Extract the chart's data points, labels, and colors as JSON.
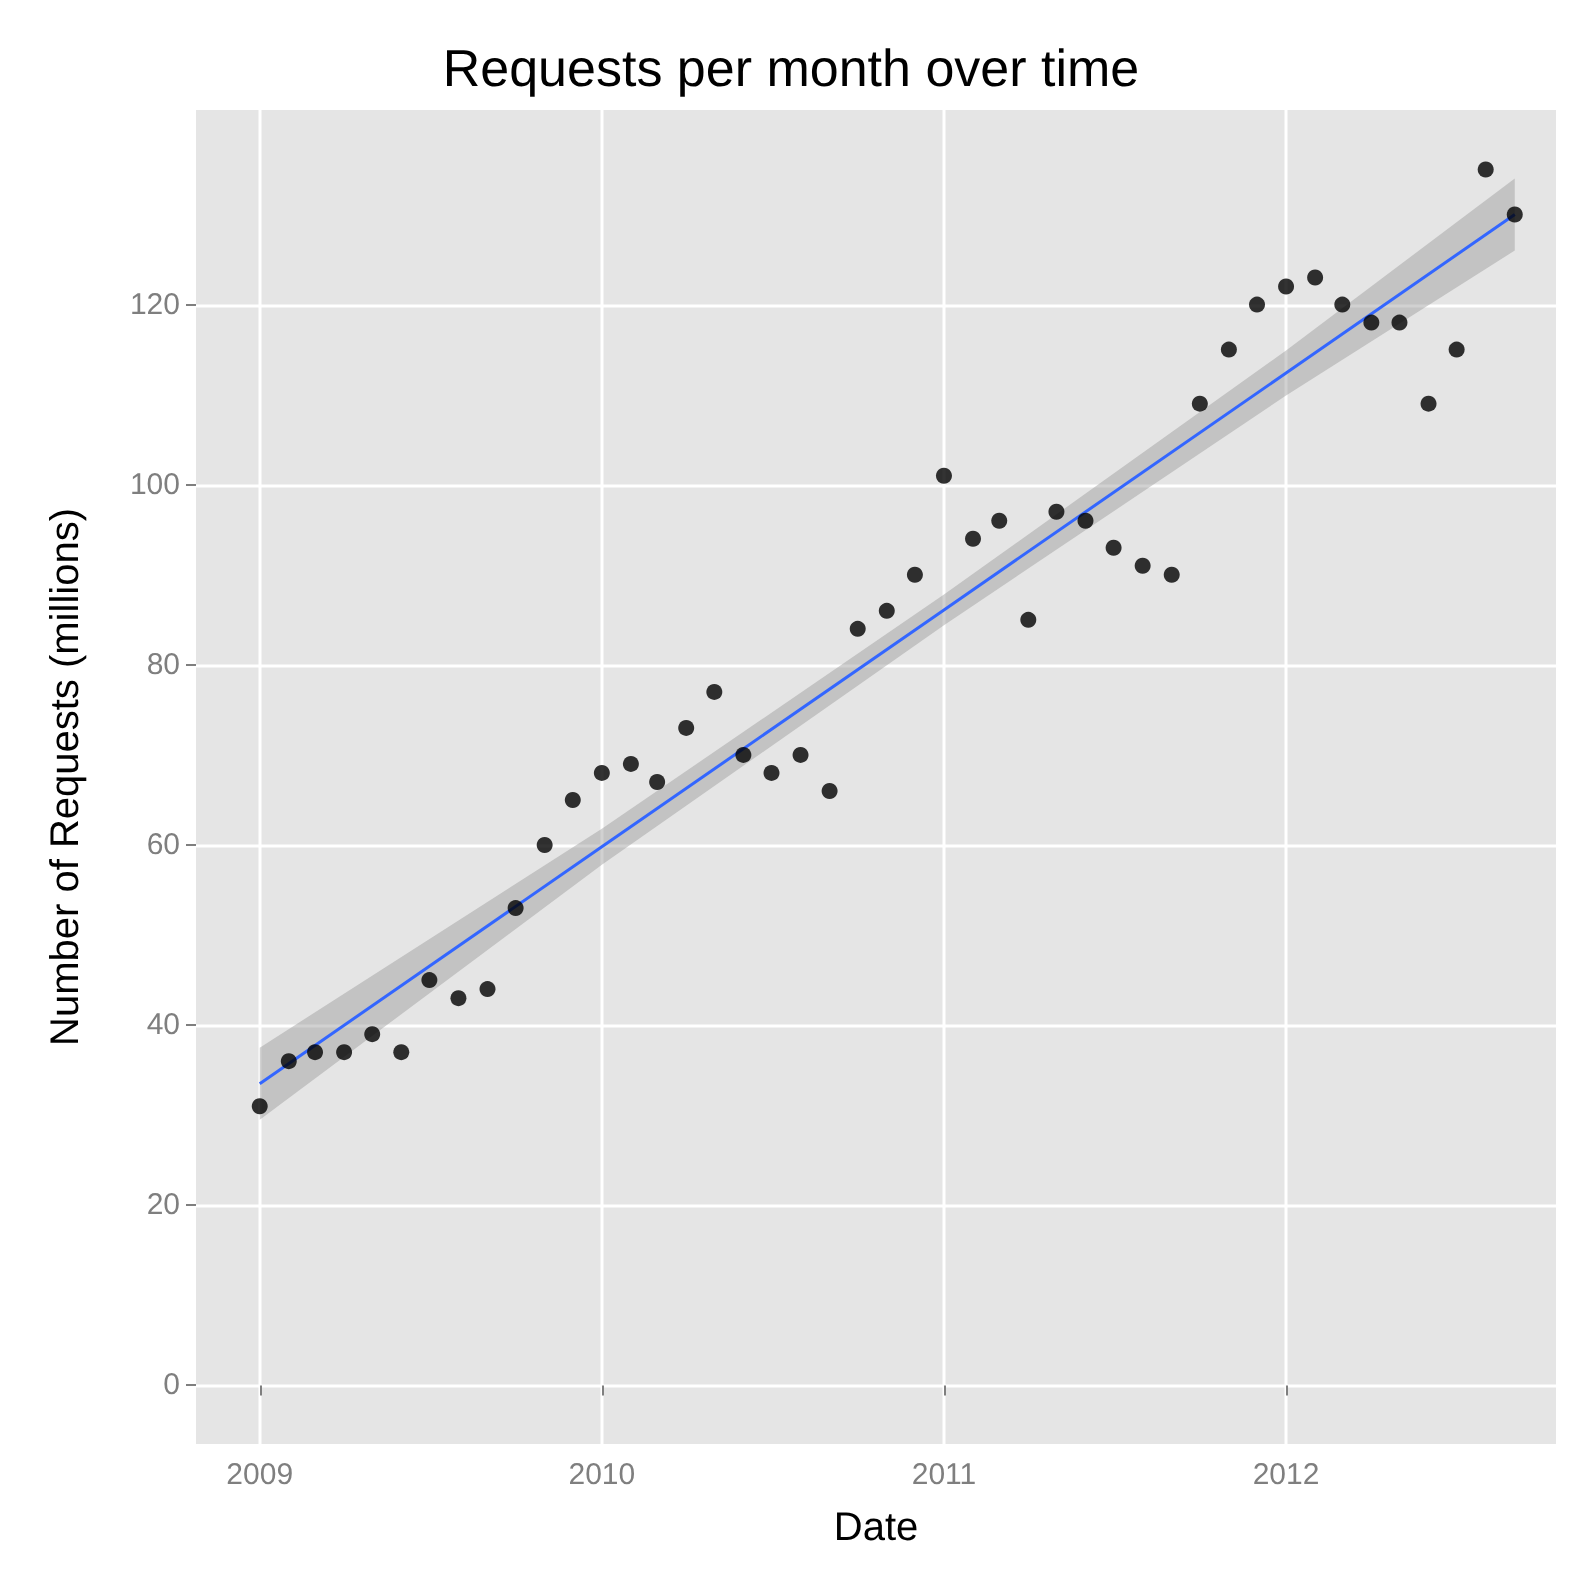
{
  "chart_data": {
    "type": "scatter",
    "title": "Requests per month over time",
    "xlabel": "Date",
    "ylabel": "Number of Requests (millions)",
    "xlim": [
      "2008-10-25",
      "2012-10-15"
    ],
    "xticks": [
      "2009",
      "2010",
      "2011",
      "2012"
    ],
    "ylim": [
      -6.5,
      141.6
    ],
    "yticks": [
      0,
      20,
      40,
      60,
      80,
      100,
      120
    ],
    "grid": true,
    "series": [
      {
        "marker": "circle",
        "color": "#000000",
        "x": [
          "2009-01",
          "2009-02",
          "2009-03",
          "2009-04",
          "2009-05",
          "2009-06",
          "2009-07",
          "2009-08",
          "2009-09",
          "2009-10",
          "2009-11",
          "2009-12",
          "2010-01",
          "2010-02",
          "2010-03",
          "2010-04",
          "2010-05",
          "2010-06",
          "2010-07",
          "2010-08",
          "2010-09",
          "2010-10",
          "2010-11",
          "2010-12",
          "2011-01",
          "2011-02",
          "2011-03",
          "2011-04",
          "2011-05",
          "2011-06",
          "2011-07",
          "2011-08",
          "2011-09",
          "2011-10",
          "2011-11",
          "2011-12",
          "2012-01",
          "2012-02",
          "2012-03",
          "2012-04",
          "2012-05",
          "2012-06",
          "2012-07",
          "2012-08",
          "2012-09"
        ],
        "values": [
          31,
          36,
          37,
          37,
          39,
          37,
          45,
          43,
          44,
          53,
          60,
          65,
          68,
          69,
          67,
          73,
          77,
          70,
          68,
          70,
          66,
          84,
          86,
          90,
          101,
          94,
          96,
          85,
          97,
          96,
          93,
          91,
          90,
          109,
          115,
          120,
          122,
          123,
          120,
          118,
          118,
          109,
          115,
          135,
          130
        ]
      },
      {
        "type": "line",
        "marker": "none",
        "line_style": "solid",
        "color": "#3366ff",
        "x": [
          "2009-01",
          "2010-01",
          "2011-01",
          "2012-01",
          "2012-09"
        ],
        "values": [
          33.5,
          59.8,
          86.1,
          112.4,
          130
        ],
        "lower": [
          29.5,
          57.8,
          84.4,
          109.9,
          126
        ],
        "upper": [
          37.5,
          61.8,
          87.8,
          114.9,
          134
        ]
      }
    ]
  }
}
